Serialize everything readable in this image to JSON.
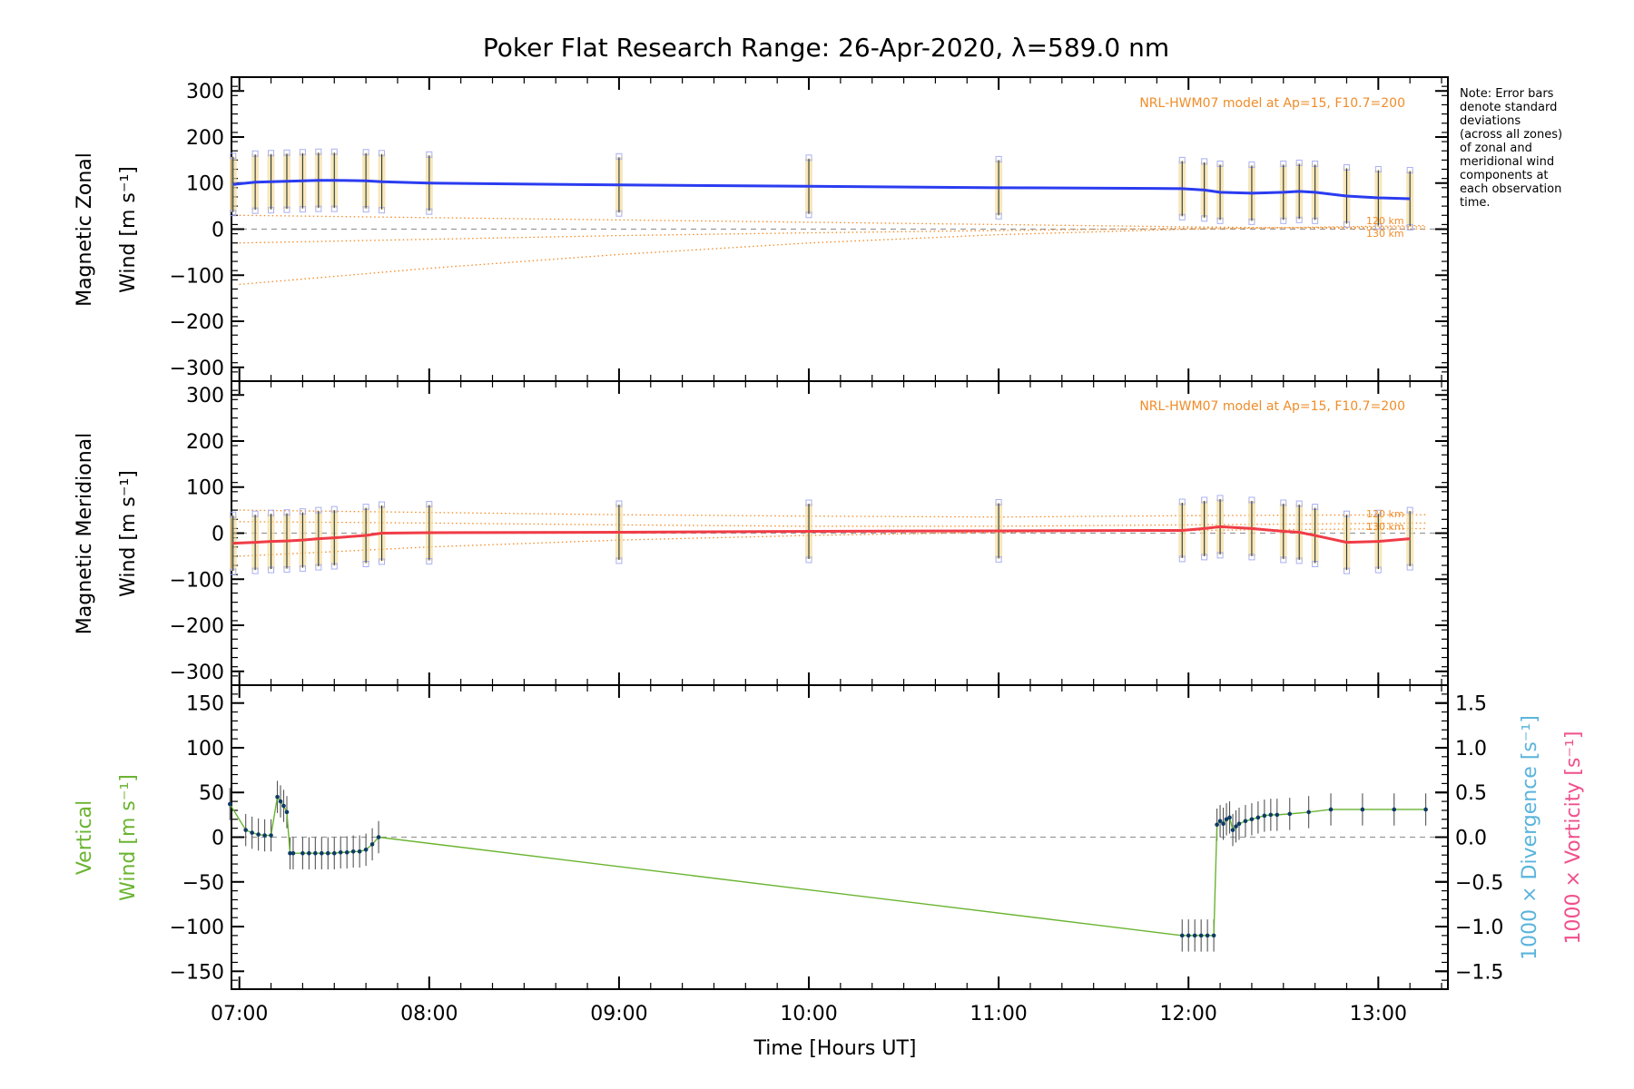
{
  "chart_data": [
    {
      "type": "line",
      "panel": "zonal",
      "title": "Poker Flat Research Range: 26-Apr-2020, λ=589.0 nm",
      "ylabel": "Magnetic Zonal Wind [m s⁻¹]",
      "ylabel_lines": [
        "Magnetic Zonal",
        "Wind [m s⁻¹]"
      ],
      "ylim": [
        -330,
        330
      ],
      "yticks": [
        300,
        200,
        100,
        0,
        -100,
        -200,
        -300
      ],
      "ytick_labels": [
        "300",
        "200",
        "100",
        "0",
        "−100",
        "−200",
        "−300"
      ],
      "model_annotation": "NRL-HWM07 model at Ap=15, F10.7=200",
      "altitude_labels": [
        "120 km",
        "130 km"
      ],
      "series": [
        {
          "color": "#2b3cf0",
          "x": [
            "06:58",
            "07:05",
            "07:10",
            "07:15",
            "07:20",
            "07:25",
            "07:30",
            "07:40",
            "07:45",
            "08:00",
            "09:00",
            "10:00",
            "11:00",
            "11:58",
            "12:05",
            "12:10",
            "12:20",
            "12:30",
            "12:35",
            "12:40",
            "12:50",
            "13:00",
            "13:10"
          ],
          "y": [
            97,
            102,
            103,
            104,
            105,
            106,
            106,
            105,
            103,
            100,
            96,
            93,
            90,
            88,
            85,
            80,
            78,
            80,
            82,
            80,
            72,
            68,
            66
          ]
        }
      ],
      "model_curves": [
        {
          "x": [
            "07:00",
            "08:00",
            "09:00",
            "10:00",
            "11:00",
            "12:00",
            "13:15"
          ],
          "y": [
            30,
            25,
            20,
            15,
            10,
            5,
            0
          ]
        },
        {
          "x": [
            "07:00",
            "08:00",
            "09:00",
            "10:00",
            "11:00",
            "12:00",
            "13:15"
          ],
          "y": [
            -30,
            -22,
            -14,
            -8,
            -3,
            2,
            5
          ]
        },
        {
          "x": [
            "07:00",
            "08:00",
            "09:00",
            "10:00",
            "11:00",
            "12:00",
            "13:15"
          ],
          "y": [
            -120,
            -85,
            -55,
            -30,
            -12,
            0,
            8
          ]
        }
      ]
    },
    {
      "type": "line",
      "panel": "meridional",
      "ylabel": "Magnetic Meridional Wind [m s⁻¹]",
      "ylabel_lines": [
        "Magnetic Meridional",
        "Wind [m s⁻¹]"
      ],
      "ylim": [
        -330,
        330
      ],
      "yticks": [
        300,
        200,
        100,
        0,
        -100,
        -200,
        -300
      ],
      "ytick_labels": [
        "300",
        "200",
        "100",
        "0",
        "−100",
        "−200",
        "−300"
      ],
      "model_annotation": "NRL-HWM07 model at Ap=15, F10.7=200",
      "altitude_labels": [
        "120 km",
        "130 km"
      ],
      "series": [
        {
          "color": "#f03c46",
          "x": [
            "06:58",
            "07:05",
            "07:10",
            "07:15",
            "07:20",
            "07:25",
            "07:30",
            "07:40",
            "07:45",
            "08:00",
            "09:00",
            "10:00",
            "11:00",
            "11:58",
            "12:05",
            "12:10",
            "12:20",
            "12:30",
            "12:35",
            "12:40",
            "12:50",
            "13:00",
            "13:10"
          ],
          "y": [
            -22,
            -20,
            -18,
            -17,
            -15,
            -12,
            -10,
            -5,
            0,
            1,
            2,
            4,
            5,
            6,
            10,
            14,
            10,
            4,
            2,
            -5,
            -20,
            -18,
            -12
          ]
        }
      ],
      "model_curves": [
        {
          "x": [
            "07:00",
            "08:00",
            "09:00",
            "10:00",
            "11:00",
            "12:00",
            "13:15"
          ],
          "y": [
            50,
            45,
            40,
            37,
            35,
            38,
            40
          ]
        },
        {
          "x": [
            "07:00",
            "08:00",
            "09:00",
            "10:00",
            "11:00",
            "12:00",
            "13:15"
          ],
          "y": [
            25,
            22,
            18,
            15,
            15,
            18,
            22
          ]
        },
        {
          "x": [
            "07:00",
            "08:00",
            "09:00",
            "10:00",
            "11:00",
            "12:00",
            "13:15"
          ],
          "y": [
            -50,
            -30,
            -15,
            -5,
            2,
            6,
            10
          ]
        }
      ]
    },
    {
      "type": "line",
      "panel": "vertical",
      "ylabel": "Vertical Wind [m s⁻¹]",
      "ylabel_lines": [
        "Vertical",
        "Wind [m s⁻¹]"
      ],
      "ylim": [
        -170,
        170
      ],
      "yticks": [
        150,
        100,
        50,
        0,
        -50,
        -100,
        -150
      ],
      "ytick_labels": [
        "150",
        "100",
        "50",
        "0",
        "−50",
        "−100",
        "−150"
      ],
      "y2label_div": "1000 × Divergence [s⁻¹]",
      "y2label_vort": "1000 × Vorticity [s⁻¹]",
      "y2ticks": [
        1.5,
        1.0,
        0.5,
        0.0,
        -0.5,
        -1.0,
        -1.5
      ],
      "y2tick_labels": [
        "1.5",
        "1.0",
        "0.5",
        "0.0",
        "−0.5",
        "−1.0",
        "−1.5"
      ],
      "xlabel": "Time [Hours UT]",
      "xticks": [
        "07:00",
        "08:00",
        "09:00",
        "10:00",
        "11:00",
        "12:00",
        "13:00"
      ],
      "series": [
        {
          "color": "#6ab430",
          "x": [
            "06:57",
            "07:02",
            "07:04",
            "07:06",
            "07:08",
            "07:10",
            "07:12",
            "07:13",
            "07:14",
            "07:15",
            "07:16",
            "07:17",
            "07:20",
            "07:22",
            "07:24",
            "07:26",
            "07:28",
            "07:30",
            "07:32",
            "07:34",
            "07:36",
            "07:38",
            "07:40",
            "07:42",
            "07:44",
            "11:58",
            "12:00",
            "12:02",
            "12:04",
            "12:06",
            "12:08",
            "12:09",
            "12:10",
            "12:11",
            "12:12",
            "12:13",
            "12:14",
            "12:15",
            "12:16",
            "12:18",
            "12:20",
            "12:22",
            "12:24",
            "12:26",
            "12:28",
            "12:32",
            "12:38",
            "12:45",
            "12:55",
            "13:05",
            "13:15"
          ],
          "y": [
            37,
            8,
            5,
            3,
            2,
            2,
            45,
            40,
            35,
            28,
            -18,
            -18,
            -18,
            -18,
            -18,
            -18,
            -18,
            -18,
            -17,
            -17,
            -16,
            -16,
            -14,
            -8,
            0,
            -110,
            -110,
            -110,
            -110,
            -110,
            -110,
            14,
            18,
            15,
            20,
            22,
            8,
            12,
            15,
            18,
            20,
            22,
            24,
            25,
            25,
            26,
            28,
            31,
            31,
            31,
            31
          ]
        }
      ]
    }
  ],
  "note": {
    "lines": [
      "Note: Error bars",
      "denote standard",
      "deviations",
      "(across all zones)",
      "of zonal and",
      "meridional wind",
      "components at",
      "each observation",
      "time."
    ]
  },
  "colors": {
    "zonal": "#2b3cf0",
    "meridional": "#f03c46",
    "vertical": "#6ab430",
    "divergence": "#5ab4dc",
    "vorticity": "#f0508c",
    "model": "#f08c28",
    "errorbar_fill": "#f5dca0",
    "samples": "#aab0f0"
  }
}
